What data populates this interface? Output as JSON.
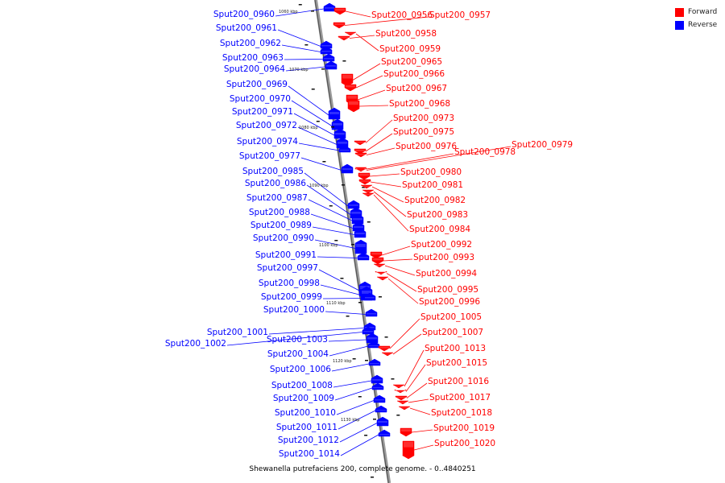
{
  "legend": {
    "forward_label": "Forward",
    "reverse_label": "Reverse",
    "forward_color": "#ff0000",
    "reverse_color": "#0000ff"
  },
  "caption": "Shewanella putrefaciens 200, complete genome. - 0..4840251",
  "ticks": [
    "1060 kbp",
    "1070 kbp",
    "1080 kbp",
    "1090 kbp",
    "1100 kbp",
    "1110 kbp",
    "1120 kbp",
    "1130 kbp"
  ],
  "reverse_genes": [
    "Sput200_0960",
    "Sput200_0961",
    "Sput200_0962",
    "Sput200_0963",
    "Sput200_0964",
    "Sput200_0969",
    "Sput200_0970",
    "Sput200_0971",
    "Sput200_0972",
    "Sput200_0974",
    "Sput200_0977",
    "Sput200_0985",
    "Sput200_0986",
    "Sput200_0987",
    "Sput200_0988",
    "Sput200_0989",
    "Sput200_0990",
    "Sput200_0991",
    "Sput200_0997",
    "Sput200_0998",
    "Sput200_0999",
    "Sput200_1000",
    "Sput200_1001",
    "Sput200_1002",
    "Sput200_1003",
    "Sput200_1004",
    "Sput200_1006",
    "Sput200_1008",
    "Sput200_1009",
    "Sput200_1010",
    "Sput200_1011",
    "Sput200_1012",
    "Sput200_1014"
  ],
  "forward_genes": [
    "Sput200_0956",
    "Sput200_0957",
    "Sput200_0958",
    "Sput200_0959",
    "Sput200_0965",
    "Sput200_0966",
    "Sput200_0967",
    "Sput200_0968",
    "Sput200_0973",
    "Sput200_0975",
    "Sput200_0976",
    "Sput200_0978",
    "Sput200_0979",
    "Sput200_0980",
    "Sput200_0981",
    "Sput200_0982",
    "Sput200_0983",
    "Sput200_0984",
    "Sput200_0992",
    "Sput200_0993",
    "Sput200_0994",
    "Sput200_0995",
    "Sput200_0996",
    "Sput200_1005",
    "Sput200_1007",
    "Sput200_1013",
    "Sput200_1015",
    "Sput200_1016",
    "Sput200_1017",
    "Sput200_1018",
    "Sput200_1019",
    "Sput200_1020"
  ]
}
